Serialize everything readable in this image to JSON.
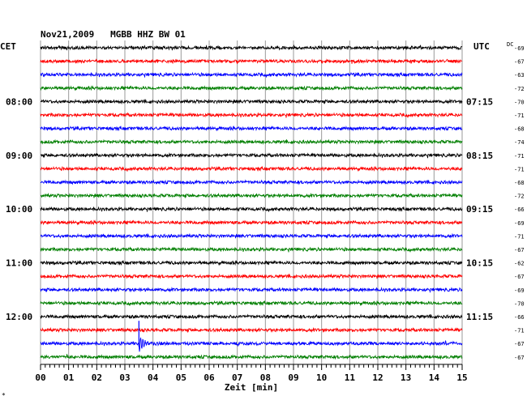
{
  "chart_data": {
    "type": "line",
    "title": "Nov21,2009   MGBB HHZ BW 01",
    "left_timezone": "CET",
    "right_timezone": "UTC",
    "dc_label": "DC",
    "xlabel": "Zeit [min]",
    "x_ticks": [
      "00",
      "01",
      "02",
      "03",
      "04",
      "05",
      "06",
      "07",
      "08",
      "09",
      "10",
      "11",
      "12",
      "13",
      "14",
      "15"
    ],
    "xlim": [
      0,
      15
    ],
    "grid": true,
    "trace_colors": [
      "#000000",
      "#ff0000",
      "#0000ff",
      "#007f00"
    ],
    "left_time_labels": [
      {
        "trace": 4,
        "label": "08:00"
      },
      {
        "trace": 8,
        "label": "09:00"
      },
      {
        "trace": 12,
        "label": "10:00"
      },
      {
        "trace": 16,
        "label": "11:00"
      },
      {
        "trace": 20,
        "label": "12:00"
      }
    ],
    "right_time_labels": [
      {
        "trace": 4,
        "label": "07:15"
      },
      {
        "trace": 8,
        "label": "08:15"
      },
      {
        "trace": 12,
        "label": "09:15"
      },
      {
        "trace": 16,
        "label": "10:15"
      },
      {
        "trace": 20,
        "label": "11:15"
      }
    ],
    "dc_offsets": [
      "-69",
      "-67",
      "-63",
      "-72",
      "-70",
      "-71",
      "-68",
      "-74",
      "-71",
      "-71",
      "-68",
      "-72",
      "-66",
      "-69",
      "-71",
      "-67",
      "-62",
      "-67",
      "-69",
      "-70",
      "-66",
      "-71",
      "-67",
      "-67"
    ],
    "events": [
      {
        "trace": 22,
        "minute": 3.5,
        "type": "quake"
      }
    ],
    "footnote": "*"
  }
}
